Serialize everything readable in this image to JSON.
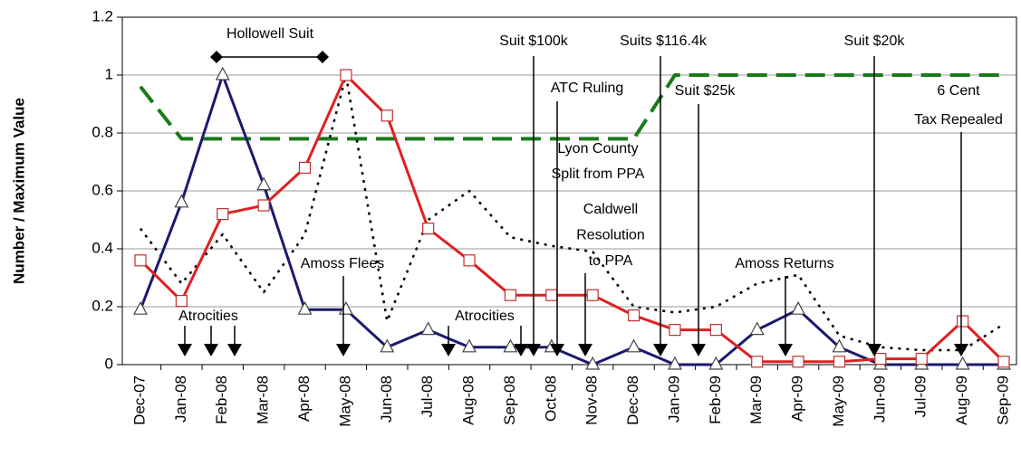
{
  "chart_data": {
    "type": "line",
    "y_label": "Number / Maximum Value",
    "categories": [
      "Dec-07",
      "Jan-08",
      "Feb-08",
      "Mar-08",
      "Apr-08",
      "May-08",
      "Jun-08",
      "Jul-08",
      "Aug-08",
      "Sep-08",
      "Oct-08",
      "Nov-08",
      "Dec-08",
      "Jan-09",
      "Feb-09",
      "Mar-09",
      "Apr-09",
      "May-09",
      "Jun-09",
      "Jul-09",
      "Aug-09",
      "Sep-09"
    ],
    "series": [
      {
        "color": "#1a1a6e",
        "style": "solid",
        "marker": "triangle",
        "values": [
          0.19,
          0.56,
          1.0,
          0.62,
          0.19,
          0.19,
          0.06,
          0.12,
          0.06,
          0.06,
          0.06,
          0,
          0.06,
          0,
          0,
          0.12,
          0.19,
          0.06,
          0,
          0,
          0,
          0
        ]
      },
      {
        "color": "#e02020",
        "style": "solid",
        "marker": "square",
        "values": [
          0.36,
          0.22,
          0.52,
          0.55,
          0.68,
          1.0,
          0.86,
          0.47,
          0.36,
          0.24,
          0.24,
          0.24,
          0.17,
          0.12,
          0.12,
          0.01,
          0.01,
          0.01,
          0.02,
          0.02,
          0.15,
          0.01
        ]
      },
      {
        "color": "#000000",
        "style": "dotted",
        "marker": "none",
        "values": [
          0.47,
          0.28,
          0.45,
          0.25,
          0.45,
          1.0,
          0.15,
          0.5,
          0.6,
          0.44,
          0.41,
          0.39,
          0.2,
          0.18,
          0.2,
          0.28,
          0.31,
          0.1,
          0.06,
          0.05,
          0.05,
          0.14
        ]
      },
      {
        "color": "#1a7a1a",
        "style": "dashed",
        "marker": "none",
        "values": [
          0.96,
          0.78,
          0.78,
          0.78,
          0.78,
          0.78,
          0.78,
          0.78,
          0.78,
          0.78,
          0.78,
          0.78,
          0.78,
          1.0,
          1.0,
          1.0,
          1.0,
          1.0,
          1.0,
          1.0,
          1.0,
          1.0
        ]
      }
    ],
    "ylim": [
      0,
      1.2
    ],
    "yticks": [
      0,
      0.2,
      0.4,
      0.6,
      0.8,
      1,
      1.2
    ],
    "grid": true,
    "annotations": [
      [
        "Hollowell Suit"
      ],
      [
        "Suit $100k"
      ],
      [
        "Suits $116.4k"
      ],
      [
        "Suit $20k"
      ],
      [
        "ATC Ruling"
      ],
      [
        "Suit $25k"
      ],
      [
        "6 Cent",
        "Tax Repealed"
      ],
      [
        "Lyon County",
        "Split from PPA"
      ],
      [
        "Caldwell",
        "Resolution",
        "to PPA"
      ],
      [
        "Amoss Flees"
      ],
      [
        "Amoss Returns"
      ],
      [
        "Atrocities"
      ],
      [
        "Atrocities"
      ]
    ]
  }
}
